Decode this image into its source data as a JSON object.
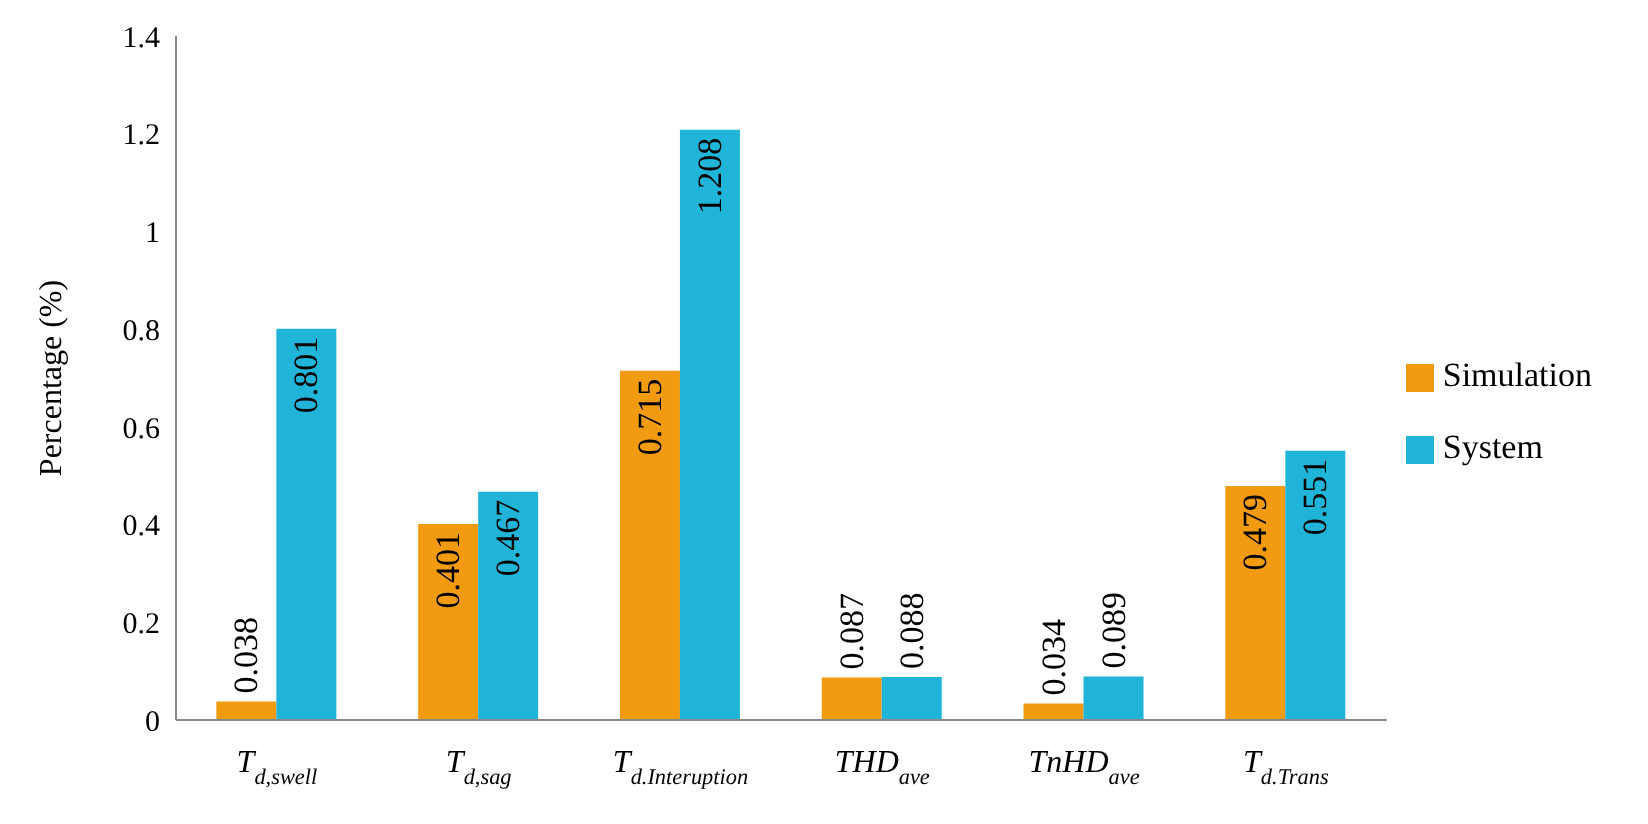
{
  "chart_data": {
    "type": "bar",
    "categories": [
      "T$_{d,swell}$",
      "T$_{d,sag}$",
      "T$_{d.Interuption}$",
      "THD$_{ave}$",
      "TnHD$_{ave}$",
      "T$_{d.Trans}$"
    ],
    "series": [
      {
        "name": "Simulation",
        "color": "#f29a10",
        "values": [
          0.038,
          0.401,
          0.715,
          0.087,
          0.034,
          0.479
        ]
      },
      {
        "name": "System",
        "color": "#1fb4d8",
        "values": [
          0.801,
          0.467,
          1.208,
          0.088,
          0.089,
          0.551
        ]
      }
    ],
    "ylabel": "Percentage (%)",
    "ylim": [
      0,
      1.4
    ],
    "yticks": [
      0,
      0.2,
      0.4,
      0.6,
      0.8,
      1,
      1.2,
      1.4
    ],
    "grid": false,
    "legend": "right",
    "data_labels": true
  }
}
